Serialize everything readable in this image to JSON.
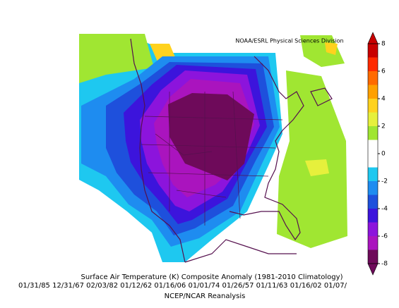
{
  "map": {
    "credit": "NOAA/ESRL Physical Sciences Division",
    "title": "Surface Air Temperature (K) Composite Anomaly (1981-2010 Climatology)",
    "dates": "01/31/85 12/31/67 02/03/82 01/12/62 01/16/06 01/01/74 01/26/57 01/11/63 01/16/02 01/07/",
    "source": "NCEP/NCAR Reanalysis"
  },
  "colorbar": {
    "lim": [
      -8,
      8
    ],
    "ticks": [
      8,
      6,
      4,
      2,
      0,
      -2,
      -4,
      -6,
      -8
    ],
    "colors": [
      "#c80000",
      "#ff2a00",
      "#ff6a00",
      "#ffa000",
      "#ffd21e",
      "#e6f03c",
      "#a0e632",
      "#ffffff",
      "#ffffff",
      "#1ec8f0",
      "#1e8cf0",
      "#1e50dc",
      "#3c14dc",
      "#8c14dc",
      "#aa14be",
      "#6e0a5a"
    ]
  }
}
